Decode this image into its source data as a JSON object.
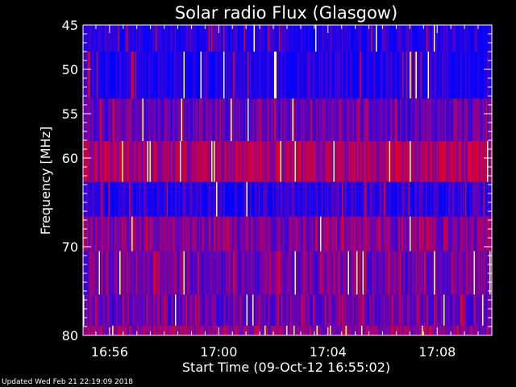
{
  "chart_data": {
    "type": "heatmap",
    "title": "Solar radio Flux (Glasgow)",
    "xlabel": "Start Time (09-Oct-12 16:55:02)",
    "ylabel": "Frequency [MHz]",
    "x_tick_labels": [
      "16:56",
      "17:00",
      "17:04",
      "17:08"
    ],
    "x_tick_minutes": [
      56,
      60,
      64,
      68
    ],
    "x_range_minutes": [
      55.03,
      70.0
    ],
    "y_tick_labels": [
      "45",
      "50",
      "55",
      "60",
      "70",
      "80"
    ],
    "y_tick_values": [
      45,
      50,
      55,
      60,
      70,
      80
    ],
    "ylim": [
      45,
      80
    ],
    "frequency_bands": [
      {
        "from": 45.0,
        "to": 48.0,
        "level": 0.12
      },
      {
        "from": 48.0,
        "to": 53.3,
        "level": 0.1
      },
      {
        "from": 53.3,
        "to": 58.1,
        "level": 0.38
      },
      {
        "from": 58.1,
        "to": 62.7,
        "level": 0.62
      },
      {
        "from": 62.7,
        "to": 66.6,
        "level": 0.15
      },
      {
        "from": 66.6,
        "to": 70.5,
        "level": 0.5
      },
      {
        "from": 70.5,
        "to": 75.4,
        "level": 0.42
      },
      {
        "from": 75.4,
        "to": 78.9,
        "level": 0.4
      },
      {
        "from": 78.9,
        "to": 80.0,
        "level": 0.55
      }
    ],
    "colors": {
      "low": "#0000ff",
      "mid": "#8000a0",
      "high": "#ff0000",
      "peak": "#ffff80"
    }
  },
  "footer": "Updated Wed Feb 21 22:19:09 2018"
}
